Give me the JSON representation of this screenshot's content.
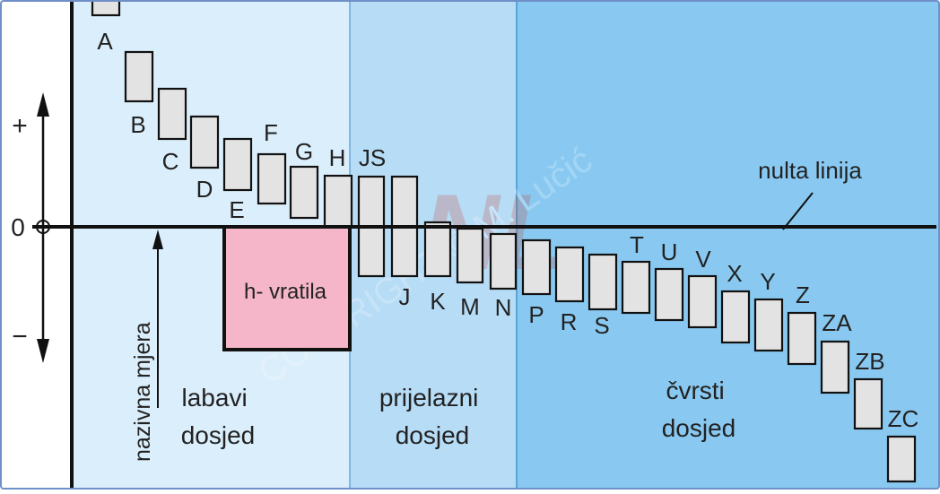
{
  "zones": [
    {
      "label_lines": [
        "labavi",
        "dosjed"
      ],
      "color": "#dbeefb"
    },
    {
      "label_lines": [
        "prijelazni",
        "dosjed"
      ],
      "color": "#b7dcf6"
    },
    {
      "label_lines": [
        "čvrsti",
        "dosjed"
      ],
      "color": "#89c9f1"
    }
  ],
  "axis": {
    "plus": "+",
    "minus": "−",
    "zero": "0",
    "nominal_size_label": "nazivna mjera",
    "zero_line_label": "nulta linija"
  },
  "shaft_h": {
    "label": "h- vratila",
    "color": "#f4b6c8"
  },
  "deviations": [
    "A",
    "B",
    "C",
    "D",
    "E",
    "F",
    "G",
    "H",
    "JS",
    "J",
    "K",
    "M",
    "N",
    "P",
    "R",
    "S",
    "T",
    "U",
    "V",
    "X",
    "Y",
    "Z",
    "ZA",
    "ZB",
    "ZC"
  ],
  "watermark": {
    "logo": "NL",
    "text": "COPYRIGHT © M. Lučić"
  },
  "colors": {
    "tolerance_box": "#e3e3e3",
    "outline": "#111111",
    "frame": "#6f8fc7"
  }
}
